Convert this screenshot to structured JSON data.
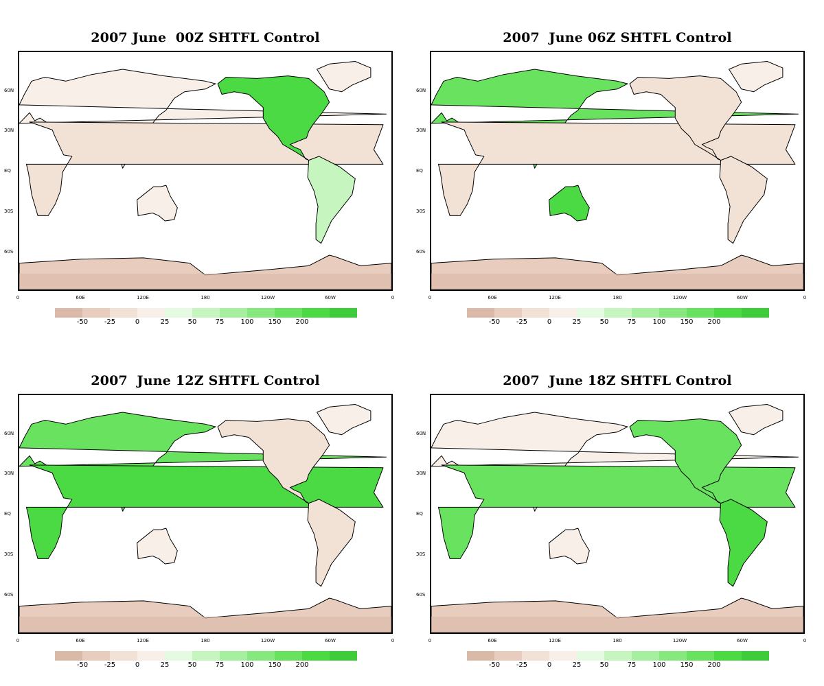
{
  "panels": [
    {
      "title": "2007 June  00Z SHTFL Control",
      "peak": "americas"
    },
    {
      "title": "2007  June 06Z SHTFL Control",
      "peak": "asia"
    },
    {
      "title": "2007  June 12Z SHTFL Control",
      "peak": "africa"
    },
    {
      "title": "2007  June 18Z SHTFL Control",
      "peak": "atlantic"
    }
  ],
  "lat_labels": [
    "60N",
    "30N",
    "EQ",
    "30S",
    "60S"
  ],
  "lon_labels": [
    "0",
    "60E",
    "120E",
    "180",
    "120W",
    "60W",
    "0"
  ],
  "colorbar": {
    "labels": [
      "-50",
      "-25",
      "0",
      "25",
      "50",
      "75",
      "100",
      "150",
      "200"
    ],
    "colors": [
      "#dbb9a9",
      "#e8cdbf",
      "#f2e2d6",
      "#f7efe8",
      "#e4fbe2",
      "#c6f5c0",
      "#a6eea0",
      "#86e87e",
      "#68e25f",
      "#4cda44",
      "#3ecc3a"
    ]
  },
  "chart_data": [
    {
      "type": "heatmap",
      "title": "2007 June  00Z SHTFL Control",
      "yticks": [
        "60N",
        "30N",
        "EQ",
        "30S",
        "60S"
      ],
      "xticks": [
        "0",
        "60E",
        "120E",
        "180",
        "120W",
        "60W",
        "0"
      ],
      "legend_levels": [
        -50,
        -25,
        0,
        25,
        50,
        75,
        100,
        150,
        200
      ]
    },
    {
      "type": "heatmap",
      "title": "2007  June 06Z SHTFL Control",
      "yticks": [
        "60N",
        "30N",
        "EQ",
        "30S",
        "60S"
      ],
      "xticks": [
        "0",
        "60E",
        "120E",
        "180",
        "120W",
        "60W",
        "0"
      ],
      "legend_levels": [
        -50,
        -25,
        0,
        25,
        50,
        75,
        100,
        150,
        200
      ]
    },
    {
      "type": "heatmap",
      "title": "2007  June 12Z SHTFL Control",
      "yticks": [
        "60N",
        "30N",
        "EQ",
        "30S",
        "60S"
      ],
      "xticks": [
        "0",
        "60E",
        "120E",
        "180",
        "120W",
        "60W",
        "0"
      ],
      "legend_levels": [
        -50,
        -25,
        0,
        25,
        50,
        75,
        100,
        150,
        200
      ]
    },
    {
      "type": "heatmap",
      "title": "2007  June 18Z SHTFL Control",
      "yticks": [
        "60N",
        "30N",
        "EQ",
        "30S",
        "60S"
      ],
      "xticks": [
        "0",
        "60E",
        "120E",
        "180",
        "120W",
        "60W",
        "0"
      ],
      "legend_levels": [
        -50,
        -25,
        0,
        25,
        50,
        75,
        100,
        150,
        200
      ]
    }
  ]
}
